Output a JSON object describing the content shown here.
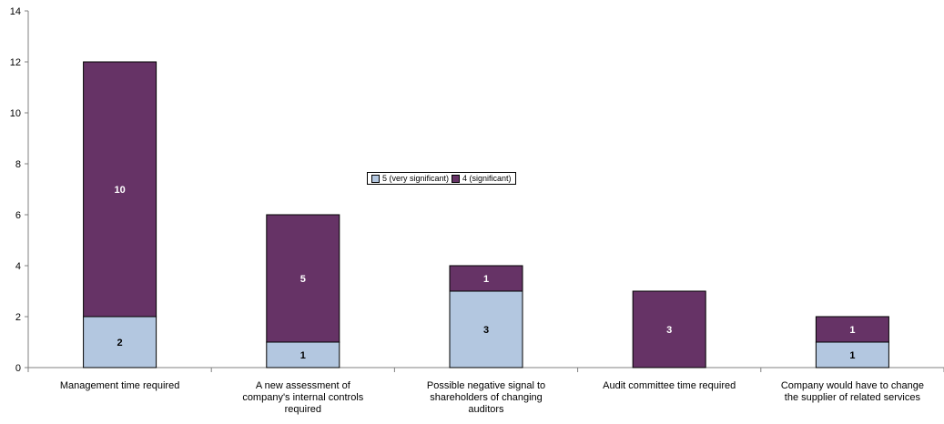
{
  "chart_data": {
    "type": "bar",
    "stacked": true,
    "categories": [
      [
        "Management time required"
      ],
      [
        "A new assessment of",
        "company's internal controls",
        "required"
      ],
      [
        "Possible negative signal to",
        "shareholders of changing",
        "auditors"
      ],
      [
        "Audit committee time required"
      ],
      [
        "Company would have to change",
        "the supplier of related services"
      ]
    ],
    "series": [
      {
        "name": "5 (very significant)",
        "color": "#b3c7e0",
        "values": [
          2,
          1,
          3,
          0,
          1
        ]
      },
      {
        "name": "4 (significant)",
        "color": "#663366",
        "values": [
          10,
          5,
          1,
          3,
          1
        ]
      }
    ],
    "ylim": [
      0,
      14
    ],
    "yticks": [
      0,
      2,
      4,
      6,
      8,
      10,
      12,
      14
    ],
    "grid": false,
    "legend_position": "center"
  }
}
